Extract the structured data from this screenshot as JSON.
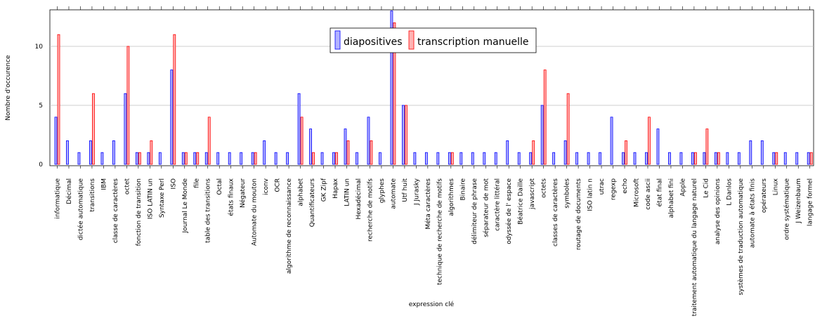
{
  "chart_data": {
    "type": "bar",
    "title": "",
    "xlabel": "expression clé",
    "ylabel": "Nombre d'occurence",
    "ylim": [
      0,
      13
    ],
    "yticks": [
      0,
      5,
      10
    ],
    "grid": "y",
    "legend_position": "top-center",
    "categories": [
      "informatique",
      "Décimal",
      "dictée automatique",
      "transitions",
      "IBM",
      "classe de caractères",
      "octet",
      "fonction de transition",
      "ISO LATIN un",
      "Syntaxe Perl",
      "ISO",
      "Journal Le Monde",
      "file",
      "table des transitions",
      "Octal",
      "états finaux",
      "Négateur",
      "Automate du mouton",
      "iconv",
      "OCR",
      "algorithme de reconnaissance",
      "alphabet",
      "Quantificateurs",
      "GK Zipf",
      "Hapax",
      "LATIN un",
      "Hexadécimal",
      "recherche de motifs",
      "glyphes",
      "automate",
      "Utf huit",
      "J Jurasky",
      "Méta caractères",
      "technique de recherche de motifs",
      "algorithmes",
      "Binaire",
      "délimiteur de phrase",
      "séparateur de mot",
      "caractère littéral",
      "odyssée de l' espace",
      "Béatrice Daille",
      "javascript",
      "octets",
      "classes de caractères",
      "symboles",
      "routage de documents",
      "ISO latin n",
      "utrac",
      "regexp",
      "echo",
      "Microsoft",
      "code ascii",
      "état final",
      "alphabet fini",
      "Apple",
      "traitement automatique du langage naturel",
      "Le Cid",
      "analyse des opinions",
      "L Danlos",
      "systèmes de traduction automatique",
      "automate à états finis",
      "opérateurs",
      "Linux",
      "ordre systématique",
      "J Weizenbaum",
      "langage formel"
    ],
    "series": [
      {
        "name": "diapositives",
        "color": "#0000ff",
        "fill": "#b3b3ff",
        "values": [
          4,
          2,
          1,
          2,
          1,
          2,
          6,
          1,
          1,
          1,
          8,
          1,
          1,
          1,
          1,
          1,
          1,
          1,
          2,
          1,
          1,
          6,
          3,
          1,
          1,
          3,
          1,
          4,
          1,
          13,
          5,
          1,
          1,
          1,
          1,
          1,
          1,
          1,
          1,
          2,
          1,
          1,
          5,
          1,
          2,
          1,
          1,
          1,
          4,
          1,
          1,
          1,
          3,
          1,
          1,
          1,
          1,
          1,
          1,
          1,
          2,
          2,
          1,
          1,
          1,
          1
        ]
      },
      {
        "name": "transcription manuelle",
        "color": "#ff0000",
        "fill": "#ffb3b3",
        "values": [
          11,
          0,
          0,
          6,
          0,
          0,
          10,
          1,
          2,
          0,
          11,
          1,
          1,
          4,
          0,
          0,
          0,
          1,
          0,
          0,
          0,
          4,
          1,
          0,
          1,
          2,
          0,
          2,
          0,
          12,
          5,
          0,
          0,
          0,
          1,
          0,
          0,
          0,
          0,
          0,
          0,
          2,
          8,
          0,
          6,
          0,
          0,
          0,
          0,
          2,
          0,
          4,
          0,
          0,
          0,
          1,
          3,
          1,
          0,
          0,
          0,
          0,
          1,
          0,
          0,
          1
        ]
      }
    ]
  }
}
